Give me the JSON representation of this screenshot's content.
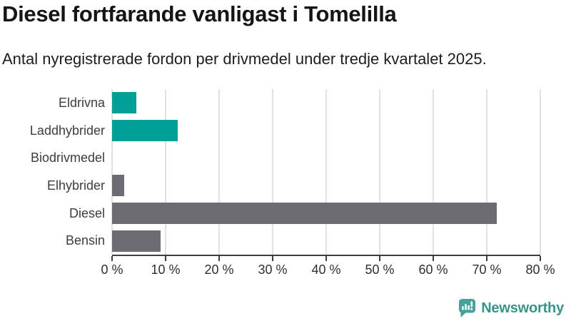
{
  "header": {
    "title": "Diesel fortfarande vanligast i Tomelilla",
    "subtitle": "Antal nyregistrerade fordon per drivmedel under tredje kvartalet 2025."
  },
  "chart_data": {
    "type": "bar",
    "orientation": "horizontal",
    "title": "Diesel fortfarande vanligast i Tomelilla",
    "subtitle": "Antal nyregistrerade fordon per drivmedel under tredje kvartalet 2025.",
    "categories": [
      "Eldrivna",
      "Laddhybrider",
      "Biodrivmedel",
      "Elhybrider",
      "Diesel",
      "Bensin"
    ],
    "values": [
      4.5,
      12.2,
      0,
      2.2,
      71.9,
      9.1
    ],
    "bar_colors": [
      "#00a098",
      "#00a098",
      "#6d6c72",
      "#6d6c72",
      "#6d6c72",
      "#6d6c72"
    ],
    "xlim": [
      0,
      80
    ],
    "x_ticks": [
      0,
      10,
      20,
      30,
      40,
      50,
      60,
      70,
      80
    ],
    "tick_label_suffix": " %",
    "grid": true,
    "legend": false
  },
  "branding": {
    "logo_text": "Newsworthy",
    "logo_icon": "newsworthy-speech-bubble-bar-chart-icon",
    "logo_text_color": "#39938b",
    "logo_icon_color": "#44a29a"
  },
  "colors": {
    "teal": "#00a098",
    "gray": "#6d6c72",
    "gridline": "#e2e2e2",
    "axis_line": "#3d3d3d",
    "tick_label": "#2f2f2f",
    "category_label": "#3d3d3d",
    "title_text": "#151515",
    "subtitle_text": "#1d1d1d",
    "background": "#ffffff"
  }
}
